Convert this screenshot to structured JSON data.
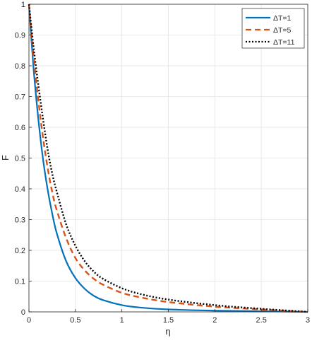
{
  "chart_data": {
    "type": "line",
    "title": "",
    "xlabel": "η",
    "ylabel": "F",
    "xlim": [
      0,
      3
    ],
    "ylim": [
      0,
      1
    ],
    "xticks": [
      0,
      0.5,
      1,
      1.5,
      2,
      2.5,
      3
    ],
    "xtick_labels": [
      "0",
      "0.5",
      "1",
      "1.5",
      "2",
      "2.5",
      "3"
    ],
    "yticks": [
      0,
      0.1,
      0.2,
      0.3,
      0.4,
      0.5,
      0.6,
      0.7,
      0.8,
      0.9,
      1
    ],
    "ytick_labels": [
      "0",
      "0.1",
      "0.2",
      "0.3",
      "0.4",
      "0.5",
      "0.6",
      "0.7",
      "0.8",
      "0.9",
      "1"
    ],
    "grid": true,
    "legend_position": "top-right",
    "series": [
      {
        "name": "ΔT=1",
        "color": "#0072BD",
        "style": "solid",
        "x": [
          0,
          0.05,
          0.1,
          0.15,
          0.2,
          0.25,
          0.3,
          0.4,
          0.5,
          0.6,
          0.7,
          0.8,
          1.0,
          1.2,
          1.5,
          2.0,
          2.5,
          3.0
        ],
        "y": [
          1.0,
          0.79,
          0.63,
          0.5,
          0.4,
          0.32,
          0.255,
          0.165,
          0.11,
          0.075,
          0.052,
          0.038,
          0.022,
          0.014,
          0.008,
          0.004,
          0.002,
          0.0
        ]
      },
      {
        "name": "ΔT=5",
        "color": "#D95319",
        "style": "dashed",
        "x": [
          0,
          0.05,
          0.1,
          0.15,
          0.2,
          0.25,
          0.3,
          0.4,
          0.5,
          0.6,
          0.7,
          0.8,
          1.0,
          1.2,
          1.5,
          2.0,
          2.5,
          3.0
        ],
        "y": [
          1.0,
          0.83,
          0.69,
          0.57,
          0.47,
          0.39,
          0.33,
          0.24,
          0.175,
          0.135,
          0.107,
          0.088,
          0.062,
          0.047,
          0.032,
          0.017,
          0.008,
          0.0
        ]
      },
      {
        "name": "ΔT=11",
        "color": "#000000",
        "style": "dotted",
        "x": [
          0,
          0.05,
          0.1,
          0.15,
          0.2,
          0.25,
          0.3,
          0.4,
          0.5,
          0.6,
          0.7,
          0.8,
          1.0,
          1.2,
          1.5,
          2.0,
          2.5,
          3.0
        ],
        "y": [
          1.0,
          0.86,
          0.74,
          0.63,
          0.53,
          0.45,
          0.39,
          0.285,
          0.215,
          0.165,
          0.13,
          0.107,
          0.077,
          0.058,
          0.04,
          0.022,
          0.01,
          0.0
        ]
      }
    ]
  }
}
